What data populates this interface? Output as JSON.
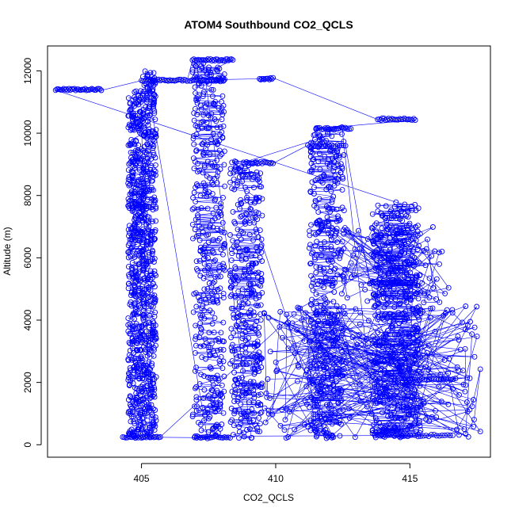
{
  "chart_data": {
    "type": "scatter",
    "title": "ATOM4 Southbound CO2_QCLS",
    "xlabel": "CO2_QCLS",
    "ylabel": "Altitude (m)",
    "xlim": [
      401.5,
      418.0
    ],
    "ylim": [
      -400,
      12800
    ],
    "x_ticks": [
      405,
      410,
      415
    ],
    "y_ticks": [
      0,
      2000,
      4000,
      6000,
      8000,
      10000,
      12000
    ],
    "grid": false,
    "legend": "none",
    "marker": "open-circle",
    "connected_by_lines": true,
    "series_color": "#0000ff",
    "segments": [
      {
        "kind": "vertical_band",
        "x_center": 404.8,
        "x_spread": 0.6,
        "y_min": 200,
        "y_max": 11400,
        "n": 520
      },
      {
        "kind": "vertical_band",
        "x_center": 405.3,
        "x_spread": 0.5,
        "y_min": 200,
        "y_max": 12000,
        "n": 420
      },
      {
        "kind": "vertical_band",
        "x_center": 407.5,
        "x_spread": 1.2,
        "y_min": 200,
        "y_max": 12300,
        "n": 420
      },
      {
        "kind": "vertical_band",
        "x_center": 408.9,
        "x_spread": 1.2,
        "y_min": 200,
        "y_max": 9100,
        "n": 380
      },
      {
        "kind": "vertical_band",
        "x_center": 411.9,
        "x_spread": 1.3,
        "y_min": 200,
        "y_max": 10200,
        "n": 420
      },
      {
        "kind": "vertical_band",
        "x_center": 414.5,
        "x_spread": 1.8,
        "y_min": 200,
        "y_max": 7800,
        "n": 520
      },
      {
        "kind": "horizontal_leg",
        "x_start": 401.8,
        "x_end": 403.5,
        "y": 11400,
        "n": 35
      },
      {
        "kind": "horizontal_leg",
        "x_start": 405.0,
        "x_end": 406.7,
        "y": 11700,
        "n": 30
      },
      {
        "kind": "horizontal_leg",
        "x_start": 406.9,
        "x_end": 408.4,
        "y": 12350,
        "n": 30
      },
      {
        "kind": "horizontal_leg",
        "x_start": 406.8,
        "x_end": 408.1,
        "y": 11700,
        "n": 25
      },
      {
        "kind": "horizontal_leg",
        "x_start": 409.4,
        "x_end": 409.9,
        "y": 11750,
        "n": 12
      },
      {
        "kind": "horizontal_leg",
        "x_start": 413.8,
        "x_end": 415.2,
        "y": 10450,
        "n": 25
      },
      {
        "kind": "horizontal_leg",
        "x_start": 411.5,
        "x_end": 412.8,
        "y": 10150,
        "n": 20
      },
      {
        "kind": "horizontal_leg",
        "x_start": 408.8,
        "x_end": 409.9,
        "y": 9050,
        "n": 20
      },
      {
        "kind": "horizontal_leg",
        "x_start": 411.2,
        "x_end": 412.6,
        "y": 9600,
        "n": 20
      },
      {
        "kind": "horizontal_leg",
        "x_start": 413.5,
        "x_end": 415.1,
        "y": 5200,
        "n": 30
      },
      {
        "kind": "horizontal_leg",
        "x_start": 415.0,
        "x_end": 416.7,
        "y": 2100,
        "n": 20
      },
      {
        "kind": "horizontal_leg",
        "x_start": 413.7,
        "x_end": 416.6,
        "y": 300,
        "n": 30
      },
      {
        "kind": "horizontal_leg",
        "x_start": 407.0,
        "x_end": 408.3,
        "y": 250,
        "n": 20
      },
      {
        "kind": "horizontal_leg",
        "x_start": 404.3,
        "x_end": 405.7,
        "y": 250,
        "n": 25
      },
      {
        "kind": "scattered_cloud",
        "x_min": 409.5,
        "x_max": 417.7,
        "y_min": 200,
        "y_max": 4500,
        "n": 220
      },
      {
        "kind": "scattered_cloud",
        "x_min": 412.0,
        "x_max": 416.5,
        "y_min": 4500,
        "y_max": 7000,
        "n": 90
      }
    ]
  }
}
